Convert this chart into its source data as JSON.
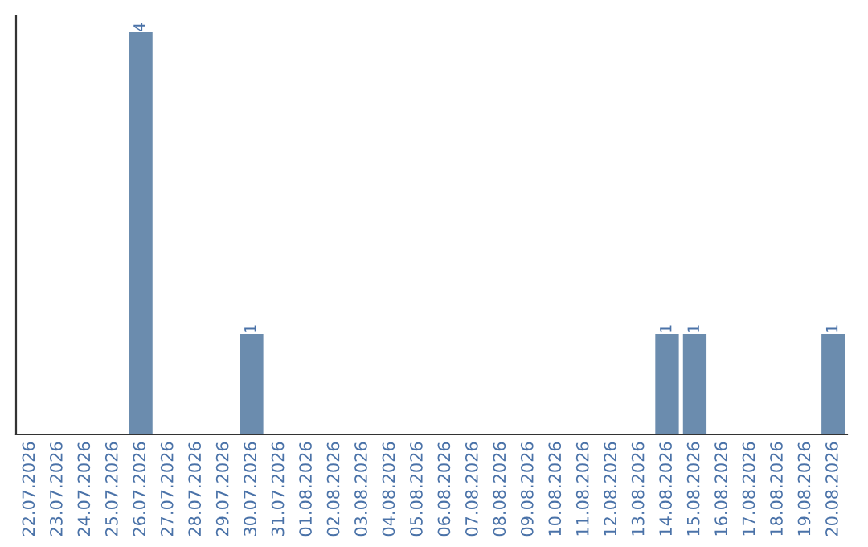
{
  "chart_data": {
    "type": "bar",
    "categories": [
      "22.07.2026",
      "23.07.2026",
      "24.07.2026",
      "25.07.2026",
      "26.07.2026",
      "27.07.2026",
      "28.07.2026",
      "29.07.2026",
      "30.07.2026",
      "31.07.2026",
      "01.08.2026",
      "02.08.2026",
      "03.08.2026",
      "04.08.2026",
      "05.08.2026",
      "06.08.2026",
      "07.08.2026",
      "08.08.2026",
      "09.08.2026",
      "10.08.2026",
      "11.08.2026",
      "12.08.2026",
      "13.08.2026",
      "14.08.2026",
      "15.08.2026",
      "16.08.2026",
      "17.08.2026",
      "18.08.2026",
      "19.08.2026",
      "20.08.2026"
    ],
    "values": [
      0,
      0,
      0,
      0,
      4,
      0,
      0,
      0,
      1,
      0,
      0,
      0,
      0,
      0,
      0,
      0,
      0,
      0,
      0,
      0,
      0,
      0,
      0,
      1,
      1,
      0,
      0,
      0,
      0,
      1
    ],
    "value_labels": [
      null,
      null,
      null,
      null,
      "4",
      null,
      null,
      null,
      "1",
      null,
      null,
      null,
      null,
      null,
      null,
      null,
      null,
      null,
      null,
      null,
      null,
      null,
      null,
      "1",
      "1",
      null,
      null,
      null,
      null,
      "1"
    ],
    "color": "#6b8cae",
    "tick_labels": "x",
    "grid": false,
    "legend": false
  }
}
